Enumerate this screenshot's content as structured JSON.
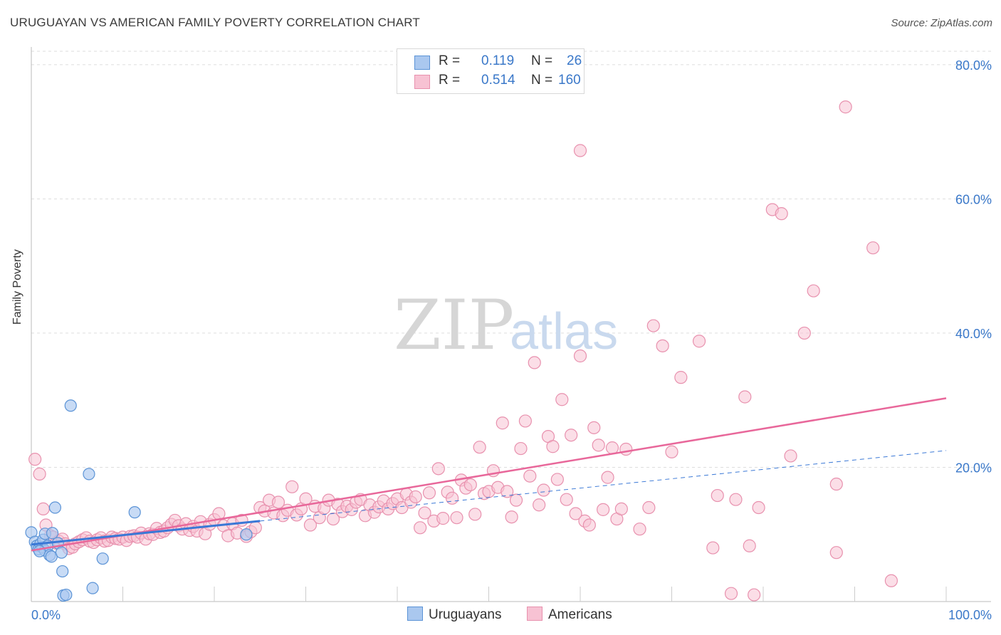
{
  "title": "URUGUAYAN VS AMERICAN FAMILY POVERTY CORRELATION CHART",
  "source": "Source: ZipAtlas.com",
  "watermark": {
    "zip": "ZIP",
    "atlas": "atlas"
  },
  "legend": {
    "uruguayans": {
      "r_label": "R = ",
      "r": "0.119",
      "n_label": "N = ",
      "n": "26"
    },
    "americans": {
      "r_label": "R = ",
      "r": "0.514",
      "n_label": "N = ",
      "n": "160"
    }
  },
  "colors": {
    "uruguayans_fill": "#aac8ef",
    "uruguayans_stroke": "#5b93d6",
    "uruguayans_line": "#3a78d6",
    "americans_fill": "#f7c2d3",
    "americans_stroke": "#e891ae",
    "americans_line": "#e8679a",
    "axis_text": "#3a78c9",
    "grid": "#dddddd"
  },
  "chart_data": {
    "type": "scatter",
    "title": "URUGUAYAN VS AMERICAN FAMILY POVERTY CORRELATION CHART",
    "xlabel": "",
    "ylabel": "Family Poverty",
    "xlim": [
      0,
      100
    ],
    "ylim": [
      0,
      82
    ],
    "x_tick_labels": [
      "0.0%",
      "100.0%"
    ],
    "y_ticks": [
      20,
      40,
      60,
      80
    ],
    "y_tick_labels": [
      "20.0%",
      "40.0%",
      "60.0%",
      "80.0%"
    ],
    "grid": true,
    "legend_position": "top-center",
    "series": [
      {
        "name": "Uruguayans",
        "r": 0.119,
        "n": 26,
        "trend_solid": [
          [
            0,
            8.5
          ],
          [
            25,
            12.0
          ]
        ],
        "trend_dashed": [
          [
            25,
            12.0
          ],
          [
            100,
            22.5
          ]
        ],
        "points": [
          [
            0.0,
            10.3
          ],
          [
            0.4,
            8.9
          ],
          [
            0.6,
            8.3
          ],
          [
            0.8,
            7.8
          ],
          [
            1.0,
            8.6
          ],
          [
            1.2,
            8.1
          ],
          [
            1.5,
            7.6
          ],
          [
            1.3,
            9.2
          ],
          [
            1.5,
            10.1
          ],
          [
            1.8,
            8.3
          ],
          [
            2.0,
            6.9
          ],
          [
            2.2,
            6.7
          ],
          [
            2.3,
            10.2
          ],
          [
            2.6,
            14.0
          ],
          [
            2.9,
            8.7
          ],
          [
            3.3,
            7.3
          ],
          [
            3.4,
            4.5
          ],
          [
            3.5,
            0.9
          ],
          [
            3.8,
            1.0
          ],
          [
            4.3,
            29.2
          ],
          [
            6.3,
            19.0
          ],
          [
            6.7,
            2.0
          ],
          [
            7.8,
            6.4
          ],
          [
            11.3,
            13.3
          ],
          [
            23.5,
            10.0
          ],
          [
            0.9,
            7.5
          ]
        ]
      },
      {
        "name": "Americans",
        "r": 0.514,
        "n": 160,
        "trend_solid": [
          [
            0,
            7.6
          ],
          [
            100,
            30.3
          ]
        ],
        "points": [
          [
            0.4,
            21.2
          ],
          [
            0.9,
            19.0
          ],
          [
            1.3,
            13.8
          ],
          [
            1.6,
            11.4
          ],
          [
            2.1,
            9.8
          ],
          [
            2.4,
            9.6
          ],
          [
            2.7,
            8.7
          ],
          [
            3.0,
            9.0
          ],
          [
            3.4,
            9.3
          ],
          [
            3.7,
            8.6
          ],
          [
            4.1,
            7.9
          ],
          [
            4.5,
            8.1
          ],
          [
            4.8,
            8.6
          ],
          [
            5.2,
            8.9
          ],
          [
            5.6,
            9.2
          ],
          [
            6.0,
            9.5
          ],
          [
            6.4,
            9.0
          ],
          [
            6.8,
            8.8
          ],
          [
            7.2,
            9.2
          ],
          [
            7.6,
            9.5
          ],
          [
            8.0,
            9.0
          ],
          [
            8.4,
            9.1
          ],
          [
            8.8,
            9.6
          ],
          [
            9.2,
            9.4
          ],
          [
            9.6,
            9.3
          ],
          [
            10.0,
            9.6
          ],
          [
            10.4,
            9.1
          ],
          [
            10.8,
            9.7
          ],
          [
            11.2,
            9.8
          ],
          [
            11.6,
            9.6
          ],
          [
            12.0,
            10.2
          ],
          [
            12.5,
            9.3
          ],
          [
            12.9,
            10.1
          ],
          [
            13.3,
            10.0
          ],
          [
            13.7,
            10.9
          ],
          [
            14.1,
            10.3
          ],
          [
            14.5,
            10.5
          ],
          [
            14.9,
            11.0
          ],
          [
            15.3,
            11.5
          ],
          [
            15.7,
            12.1
          ],
          [
            16.1,
            11.3
          ],
          [
            16.5,
            10.8
          ],
          [
            16.9,
            11.6
          ],
          [
            17.3,
            10.6
          ],
          [
            17.7,
            11.2
          ],
          [
            18.1,
            10.5
          ],
          [
            18.5,
            11.9
          ],
          [
            19.0,
            10.1
          ],
          [
            19.5,
            11.5
          ],
          [
            20.0,
            12.2
          ],
          [
            20.5,
            13.1
          ],
          [
            21.0,
            11.3
          ],
          [
            21.5,
            9.8
          ],
          [
            22.0,
            11.6
          ],
          [
            22.5,
            10.2
          ],
          [
            23.0,
            12.1
          ],
          [
            23.5,
            9.7
          ],
          [
            24.0,
            10.4
          ],
          [
            24.5,
            11.0
          ],
          [
            25.0,
            14.0
          ],
          [
            25.5,
            13.5
          ],
          [
            26.0,
            15.1
          ],
          [
            26.5,
            13.2
          ],
          [
            27.0,
            14.8
          ],
          [
            27.5,
            12.8
          ],
          [
            28.0,
            13.6
          ],
          [
            28.5,
            17.1
          ],
          [
            29.0,
            12.9
          ],
          [
            29.5,
            13.8
          ],
          [
            30.0,
            15.3
          ],
          [
            30.5,
            11.4
          ],
          [
            31.0,
            14.2
          ],
          [
            31.5,
            12.5
          ],
          [
            32.0,
            13.9
          ],
          [
            32.5,
            15.1
          ],
          [
            33.0,
            12.3
          ],
          [
            33.5,
            14.5
          ],
          [
            34.0,
            13.4
          ],
          [
            34.5,
            14.2
          ],
          [
            35.0,
            13.7
          ],
          [
            35.5,
            14.8
          ],
          [
            36.0,
            15.2
          ],
          [
            36.5,
            12.8
          ],
          [
            37.0,
            14.4
          ],
          [
            37.5,
            13.3
          ],
          [
            38.0,
            14.1
          ],
          [
            38.5,
            15.0
          ],
          [
            39.0,
            13.8
          ],
          [
            39.5,
            14.6
          ],
          [
            40.0,
            15.3
          ],
          [
            40.5,
            14.0
          ],
          [
            41.0,
            16.0
          ],
          [
            41.5,
            14.8
          ],
          [
            42.0,
            15.6
          ],
          [
            42.5,
            11.0
          ],
          [
            43.0,
            13.2
          ],
          [
            43.5,
            16.2
          ],
          [
            44.0,
            12.0
          ],
          [
            44.5,
            19.8
          ],
          [
            45.0,
            12.4
          ],
          [
            45.5,
            16.3
          ],
          [
            46.0,
            15.4
          ],
          [
            46.5,
            12.5
          ],
          [
            47.0,
            18.1
          ],
          [
            47.5,
            16.9
          ],
          [
            48.0,
            17.4
          ],
          [
            48.5,
            13.0
          ],
          [
            49.0,
            23.0
          ],
          [
            49.5,
            16.1
          ],
          [
            50.0,
            16.4
          ],
          [
            50.5,
            19.5
          ],
          [
            51.0,
            17.0
          ],
          [
            51.5,
            26.6
          ],
          [
            52.0,
            16.4
          ],
          [
            52.5,
            12.6
          ],
          [
            53.0,
            15.1
          ],
          [
            53.5,
            22.8
          ],
          [
            54.0,
            26.9
          ],
          [
            54.5,
            18.7
          ],
          [
            55.0,
            35.6
          ],
          [
            55.5,
            14.4
          ],
          [
            56.0,
            16.6
          ],
          [
            56.5,
            24.6
          ],
          [
            57.0,
            23.1
          ],
          [
            57.5,
            18.2
          ],
          [
            58.0,
            30.1
          ],
          [
            58.5,
            15.2
          ],
          [
            59.0,
            24.8
          ],
          [
            59.5,
            13.1
          ],
          [
            60.0,
            36.6
          ],
          [
            60.5,
            12.0
          ],
          [
            61.0,
            11.4
          ],
          [
            61.5,
            25.9
          ],
          [
            62.0,
            23.3
          ],
          [
            62.5,
            13.7
          ],
          [
            63.0,
            18.5
          ],
          [
            63.5,
            22.9
          ],
          [
            64.0,
            12.3
          ],
          [
            64.5,
            13.8
          ],
          [
            65.0,
            22.7
          ],
          [
            68.0,
            41.1
          ],
          [
            69.0,
            38.1
          ],
          [
            70.0,
            22.3
          ],
          [
            71.0,
            33.4
          ],
          [
            73.0,
            38.8
          ],
          [
            75.0,
            15.8
          ],
          [
            77.0,
            15.2
          ],
          [
            78.0,
            30.5
          ],
          [
            79.5,
            14.0
          ],
          [
            81.0,
            58.4
          ],
          [
            82.0,
            57.8
          ],
          [
            83.0,
            21.7
          ],
          [
            84.5,
            40.0
          ],
          [
            85.5,
            46.3
          ],
          [
            88.0,
            7.3
          ],
          [
            89.0,
            73.7
          ],
          [
            92.0,
            52.7
          ],
          [
            94.0,
            3.1
          ],
          [
            74.5,
            8.0
          ],
          [
            76.5,
            1.2
          ],
          [
            78.5,
            8.3
          ],
          [
            79.0,
            1.0
          ],
          [
            66.5,
            10.8
          ],
          [
            67.5,
            14.0
          ],
          [
            60.0,
            67.2
          ],
          [
            88.0,
            17.5
          ]
        ]
      }
    ]
  }
}
